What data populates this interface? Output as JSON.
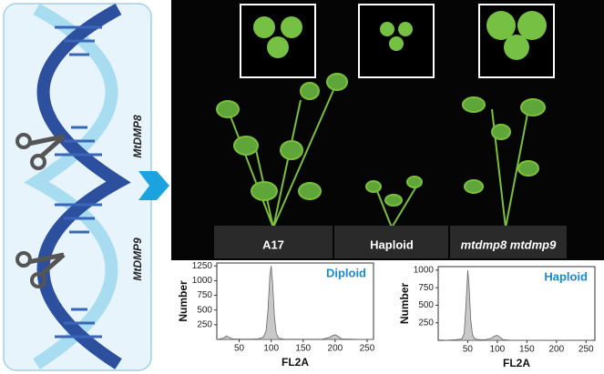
{
  "genes": [
    "MtDMP8",
    "MtDMP9"
  ],
  "plants": [
    "A17",
    "Haploid",
    "mtdmp8 mtdmp9"
  ],
  "chart_data": [
    {
      "type": "area",
      "title": "Diploid",
      "x_label": "FL2A",
      "y_label": "Number",
      "color": "#c8c8c8",
      "x": [
        15,
        20,
        25,
        30,
        35,
        40,
        50,
        60,
        70,
        80,
        88,
        92,
        95,
        98,
        100,
        102,
        105,
        108,
        112,
        120,
        140,
        160,
        180,
        190,
        195,
        200,
        205,
        210,
        230,
        250,
        260
      ],
      "values": [
        0,
        10,
        20,
        60,
        30,
        10,
        5,
        5,
        5,
        10,
        40,
        150,
        500,
        1100,
        1250,
        1000,
        400,
        100,
        20,
        5,
        3,
        3,
        5,
        30,
        60,
        80,
        50,
        10,
        3,
        0,
        0
      ],
      "xlim": [
        15,
        260
      ],
      "xticks": [
        50,
        100,
        150,
        200,
        250
      ],
      "ylim": [
        0,
        1300
      ],
      "yticks": [
        250,
        500,
        750,
        1000,
        1250
      ]
    },
    {
      "type": "area",
      "title": "Haploid",
      "x_label": "FL2A",
      "y_label": "Number",
      "color": "#c8c8c8",
      "x": [
        10,
        20,
        30,
        40,
        44,
        47,
        50,
        52,
        55,
        58,
        62,
        70,
        80,
        90,
        95,
        100,
        105,
        110,
        120,
        150,
        200,
        260
      ],
      "values": [
        0,
        5,
        10,
        20,
        100,
        500,
        1000,
        800,
        300,
        80,
        20,
        10,
        10,
        30,
        60,
        70,
        40,
        10,
        3,
        2,
        0,
        0
      ],
      "xlim": [
        0,
        265
      ],
      "xticks": [
        50,
        100,
        150,
        200,
        250
      ],
      "ylim": [
        0,
        1050
      ],
      "yticks": [
        250,
        500,
        750,
        1000
      ]
    }
  ]
}
